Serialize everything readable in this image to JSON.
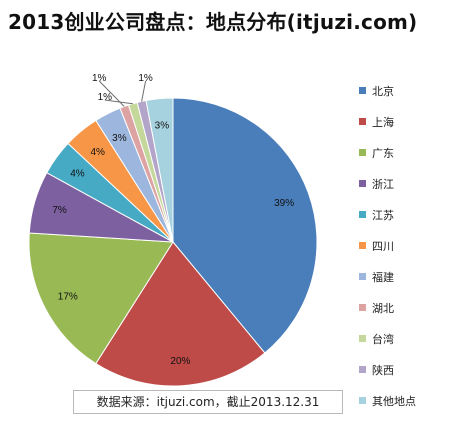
{
  "chart_data": {
    "type": "pie",
    "title": "2013创业公司盘点：地点分布(itjuzi.com)",
    "source": "数据来源：itjuzi.com，截止2013.12.31",
    "legend_position": "right",
    "categories": [
      "北京",
      "上海",
      "广东",
      "浙江",
      "江苏",
      "四川",
      "福建",
      "湖北",
      "台湾",
      "陕西",
      "其他地点"
    ],
    "values": [
      39,
      20,
      17,
      7,
      4,
      4,
      3,
      1,
      1,
      1,
      3
    ],
    "value_labels": [
      "39%",
      "20%",
      "17%",
      "7%",
      "4%",
      "4%",
      "3%",
      "1%",
      "1%",
      "1%",
      "3%"
    ],
    "colors": [
      "#4a7ebb",
      "#be4b48",
      "#98b954",
      "#7d60a0",
      "#46aac4",
      "#f79646",
      "#9db6dd",
      "#dca3a2",
      "#c5d89b",
      "#b3a4c9",
      "#a6d2df"
    ]
  }
}
